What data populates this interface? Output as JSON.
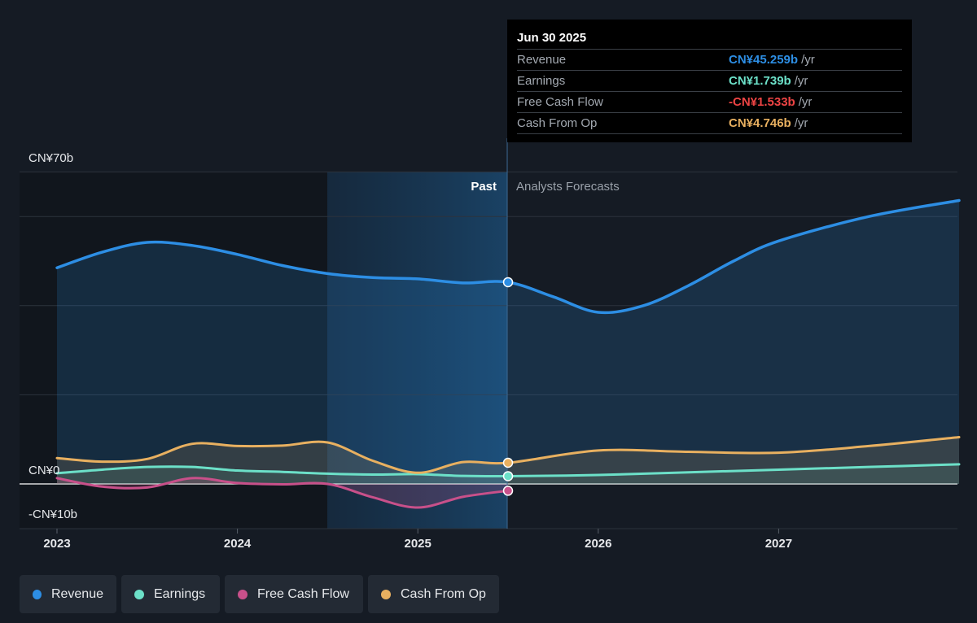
{
  "tooltip": {
    "date": "Jun 30 2025",
    "rows": [
      {
        "label": "Revenue",
        "value": "CN¥45.259b",
        "unit": "/yr",
        "color": "#2d8ee4"
      },
      {
        "label": "Earnings",
        "value": "CN¥1.739b",
        "unit": "/yr",
        "color": "#6ce0c8"
      },
      {
        "label": "Free Cash Flow",
        "value": "-CN¥1.533b",
        "unit": "/yr",
        "color": "#ee4444"
      },
      {
        "label": "Cash From Op",
        "value": "CN¥4.746b",
        "unit": "/yr",
        "color": "#e8b060"
      }
    ]
  },
  "legend": [
    {
      "label": "Revenue",
      "color": "#2d8ee4"
    },
    {
      "label": "Earnings",
      "color": "#6ce0c8"
    },
    {
      "label": "Free Cash Flow",
      "color": "#c8508a"
    },
    {
      "label": "Cash From Op",
      "color": "#e8b060"
    }
  ],
  "chart_data": {
    "type": "line",
    "ylim": [
      -10,
      70
    ],
    "y_tick_labels": [
      "CN¥70b",
      "CN¥0",
      "-CN¥10b"
    ],
    "x_tick_labels": [
      "2023",
      "2024",
      "2025",
      "2026",
      "2027"
    ],
    "past_label": "Past",
    "forecast_label": "Analysts Forecasts",
    "divider_x": 2025.5,
    "grid": true,
    "series": [
      {
        "name": "Revenue",
        "color": "#2d8ee4",
        "past": [
          [
            2023.0,
            48.5
          ],
          [
            2023.25,
            52.0
          ],
          [
            2023.5,
            54.2
          ],
          [
            2023.75,
            53.5
          ],
          [
            2024.0,
            51.5
          ],
          [
            2024.25,
            49.0
          ],
          [
            2024.5,
            47.2
          ],
          [
            2024.75,
            46.3
          ],
          [
            2025.0,
            46.0
          ],
          [
            2025.25,
            45.1
          ],
          [
            2025.5,
            45.259
          ]
        ],
        "forecast": [
          [
            2025.5,
            45.259
          ],
          [
            2025.75,
            42.0
          ],
          [
            2026.0,
            38.5
          ],
          [
            2026.25,
            40.0
          ],
          [
            2026.5,
            44.5
          ],
          [
            2026.75,
            50.0
          ],
          [
            2027.0,
            54.5
          ],
          [
            2027.5,
            60.0
          ],
          [
            2028.0,
            63.6
          ]
        ]
      },
      {
        "name": "Earnings",
        "color": "#6ce0c8",
        "past": [
          [
            2023.0,
            2.4
          ],
          [
            2023.25,
            3.2
          ],
          [
            2023.5,
            3.8
          ],
          [
            2023.75,
            3.8
          ],
          [
            2024.0,
            3.0
          ],
          [
            2024.25,
            2.7
          ],
          [
            2024.5,
            2.3
          ],
          [
            2024.75,
            2.1
          ],
          [
            2025.0,
            2.2
          ],
          [
            2025.25,
            1.8
          ],
          [
            2025.5,
            1.739
          ]
        ],
        "forecast": [
          [
            2025.5,
            1.739
          ],
          [
            2026.0,
            2.0
          ],
          [
            2026.5,
            2.6
          ],
          [
            2027.0,
            3.2
          ],
          [
            2027.5,
            3.8
          ],
          [
            2028.0,
            4.4
          ]
        ]
      },
      {
        "name": "Free Cash Flow",
        "color": "#c8508a",
        "past": [
          [
            2023.0,
            1.3
          ],
          [
            2023.25,
            -0.6
          ],
          [
            2023.5,
            -0.8
          ],
          [
            2023.75,
            1.3
          ],
          [
            2024.0,
            0.2
          ],
          [
            2024.25,
            -0.1
          ],
          [
            2024.5,
            0.0
          ],
          [
            2024.75,
            -3.0
          ],
          [
            2025.0,
            -5.3
          ],
          [
            2025.25,
            -2.9
          ],
          [
            2025.5,
            -1.533
          ]
        ],
        "forecast": []
      },
      {
        "name": "Cash From Op",
        "color": "#e8b060",
        "past": [
          [
            2023.0,
            5.8
          ],
          [
            2023.25,
            5.0
          ],
          [
            2023.5,
            5.6
          ],
          [
            2023.75,
            9.0
          ],
          [
            2024.0,
            8.5
          ],
          [
            2024.25,
            8.6
          ],
          [
            2024.5,
            9.3
          ],
          [
            2024.75,
            5.2
          ],
          [
            2025.0,
            2.5
          ],
          [
            2025.25,
            4.9
          ],
          [
            2025.5,
            4.746
          ]
        ],
        "forecast": [
          [
            2025.5,
            4.746
          ],
          [
            2026.0,
            7.5
          ],
          [
            2026.5,
            7.2
          ],
          [
            2027.0,
            7.0
          ],
          [
            2027.5,
            8.5
          ],
          [
            2028.0,
            10.5
          ]
        ]
      }
    ]
  }
}
